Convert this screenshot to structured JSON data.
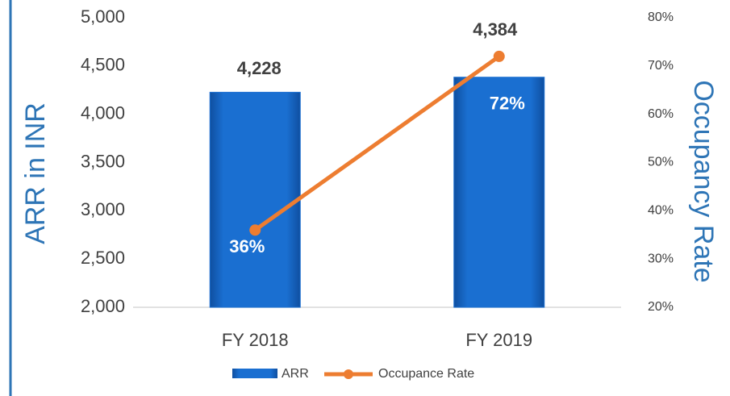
{
  "chart_data": {
    "type": "bar_line",
    "categories": [
      "FY 2018",
      "FY 2019"
    ],
    "ylabel": "ARR in INR",
    "y2label": "Occupancy Rate",
    "series": [
      {
        "name": "ARR",
        "color": "#1a6fd1",
        "values": [
          4228,
          4384
        ],
        "value_labels": [
          "4,228",
          "4,384"
        ]
      },
      {
        "name": "Occupance Rate",
        "color": "#ed7d31",
        "axis": "y2",
        "values": [
          36,
          72
        ],
        "value_labels": [
          "36%",
          "72%"
        ]
      }
    ],
    "ylim": [
      2000,
      5000
    ],
    "yticks": [
      {
        "value": 2000,
        "label": "2,000"
      },
      {
        "value": 2500,
        "label": "2,500"
      },
      {
        "value": 3000,
        "label": "3,000"
      },
      {
        "value": 3500,
        "label": "3,500"
      },
      {
        "value": 4000,
        "label": "4,000"
      },
      {
        "value": 4500,
        "label": "4,500"
      },
      {
        "value": 5000,
        "label": "5,000"
      }
    ],
    "y2lim": [
      20,
      80
    ],
    "y2ticks": [
      {
        "value": 20,
        "label": "20%"
      },
      {
        "value": 30,
        "label": "30%"
      },
      {
        "value": 40,
        "label": "40%"
      },
      {
        "value": 50,
        "label": "50%"
      },
      {
        "value": 60,
        "label": "60%"
      },
      {
        "value": 70,
        "label": "70%"
      },
      {
        "value": 80,
        "label": "80%"
      }
    ],
    "legend": "bottom"
  }
}
